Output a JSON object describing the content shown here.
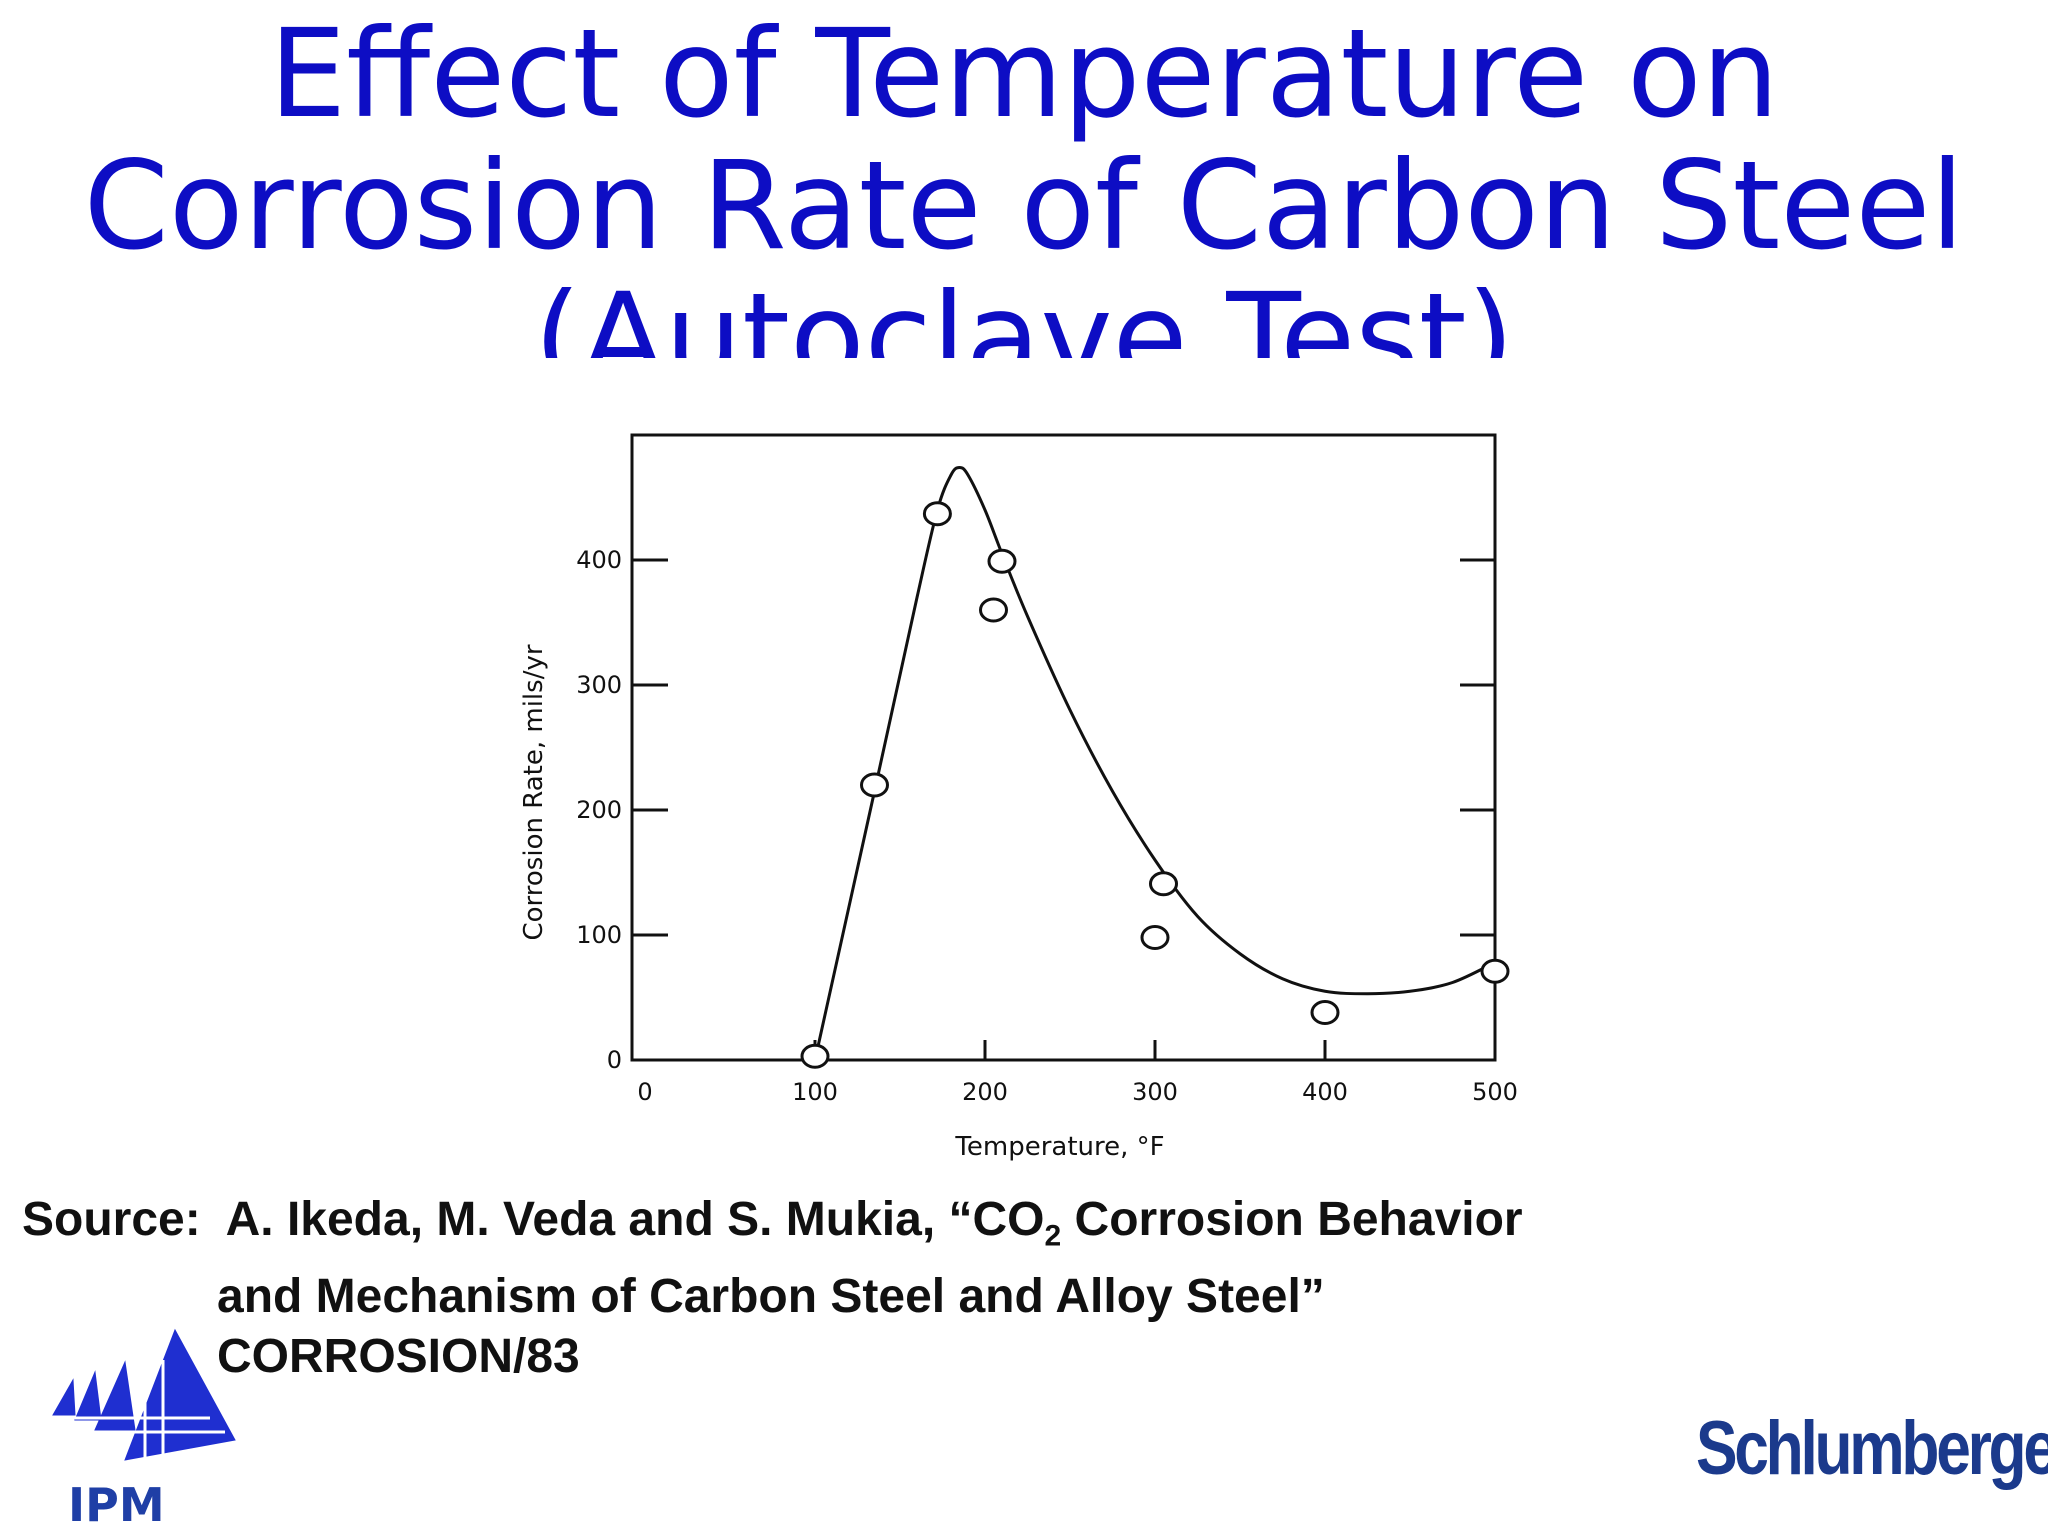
{
  "slide": {
    "title_lines": [
      "Effect of Temperature on",
      "Corrosion Rate of Carbon Steel",
      "(Autoclave Test)"
    ],
    "source": {
      "label": "Source:",
      "line1_pre": "A. Ikeda, M. Veda and S. Mukia, “CO",
      "line1_sub": "2",
      "line1_post": " Corrosion Behavior",
      "line2": "and Mechanism of Carbon Steel and Alloy Steel”",
      "line3": "CORROSION/83"
    },
    "logo_left_text": "IPM",
    "logo_right_text": "Schlumberger",
    "colors": {
      "title": "#0d0dc4",
      "logo_blue": "#1b3a8c",
      "ipm_blue": "#1f3fa6"
    }
  },
  "chart_data": {
    "type": "scatter",
    "title": "",
    "xlabel": "Temperature, °F",
    "ylabel": "Corrosion Rate, mils/yr",
    "xlim": [
      0,
      500
    ],
    "ylim": [
      0,
      500
    ],
    "x_ticks": [
      0,
      100,
      200,
      300,
      400,
      500
    ],
    "y_ticks": [
      0,
      100,
      200,
      300,
      400
    ],
    "grid": false,
    "points": [
      {
        "x": 100,
        "y": 3
      },
      {
        "x": 135,
        "y": 220
      },
      {
        "x": 172,
        "y": 437
      },
      {
        "x": 205,
        "y": 360
      },
      {
        "x": 210,
        "y": 399
      },
      {
        "x": 300,
        "y": 98
      },
      {
        "x": 305,
        "y": 141
      },
      {
        "x": 400,
        "y": 38
      },
      {
        "x": 500,
        "y": 71
      }
    ],
    "fit_curve": [
      [
        100,
        0
      ],
      [
        135,
        215
      ],
      [
        160,
        370
      ],
      [
        172,
        440
      ],
      [
        180,
        468
      ],
      [
        185,
        474
      ],
      [
        190,
        468
      ],
      [
        200,
        440
      ],
      [
        210,
        405
      ],
      [
        225,
        355
      ],
      [
        250,
        280
      ],
      [
        275,
        215
      ],
      [
        300,
        160
      ],
      [
        325,
        115
      ],
      [
        350,
        85
      ],
      [
        375,
        65
      ],
      [
        400,
        55
      ],
      [
        425,
        53
      ],
      [
        450,
        55
      ],
      [
        475,
        62
      ],
      [
        500,
        78
      ]
    ]
  }
}
